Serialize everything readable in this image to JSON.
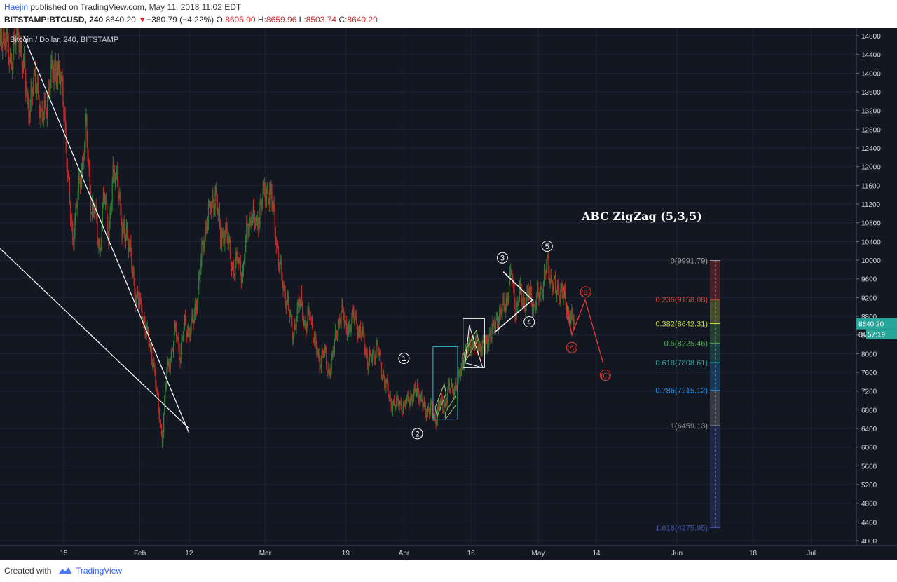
{
  "header": {
    "author": "Haejin",
    "published_text": "published on TradingView.com, May 11, 2018 11:02 EDT",
    "symbol": "BITSTAMP:BTCUSD, 240",
    "change_text": "−380.79 (−4.22%)",
    "ohlc": [
      {
        "label": "O:",
        "value": "8605.00"
      },
      {
        "label": "H:",
        "value": "8659.96"
      },
      {
        "label": "L:",
        "value": "8503.74"
      },
      {
        "label": "C:",
        "value": "8640.20"
      }
    ]
  },
  "footer": {
    "created_with": "Created with",
    "brand": "TradingView"
  },
  "chart_data": {
    "type": "candlestick",
    "series_title": "Bitcoin / Dollar, 240, BITSTAMP",
    "annotation_title": "ABC ZigZag (5,3,5)",
    "ylim": [
      4000,
      14800
    ],
    "y_ticks": [
      4000,
      4400,
      4800,
      5200,
      5600,
      6000,
      6400,
      6800,
      7200,
      7600,
      8000,
      8400,
      8800,
      9200,
      9600,
      10000,
      10400,
      10800,
      11200,
      11600,
      12000,
      12400,
      12800,
      13200,
      13600,
      14000,
      14400,
      14800
    ],
    "x_ticks": [
      {
        "label": "15",
        "day": 15
      },
      {
        "label": "Feb",
        "day": 32
      },
      {
        "label": "12",
        "day": 43
      },
      {
        "label": "Mar",
        "day": 60
      },
      {
        "label": "19",
        "day": 78
      },
      {
        "label": "Apr",
        "day": 91
      },
      {
        "label": "16",
        "day": 106
      },
      {
        "label": "May",
        "day": 121
      },
      {
        "label": "14",
        "day": 134
      },
      {
        "label": "Jun",
        "day": 152
      },
      {
        "label": "18",
        "day": 169
      },
      {
        "label": "Jul",
        "day": 182
      }
    ],
    "price_path": [
      [
        0,
        13500
      ],
      [
        1,
        15000
      ],
      [
        3,
        14300
      ],
      [
        5,
        14900
      ],
      [
        7,
        13300
      ],
      [
        9,
        13900
      ],
      [
        10,
        12900
      ],
      [
        12,
        13800
      ],
      [
        13,
        14200
      ],
      [
        15,
        13500
      ],
      [
        16,
        11500
      ],
      [
        17,
        10500
      ],
      [
        18,
        11200
      ],
      [
        19,
        12000
      ],
      [
        20,
        12800
      ],
      [
        21,
        11300
      ],
      [
        22,
        11000
      ],
      [
        23,
        10200
      ],
      [
        24,
        11400
      ],
      [
        25,
        10600
      ],
      [
        26,
        11700
      ],
      [
        27,
        11900
      ],
      [
        28,
        10500
      ],
      [
        29,
        10700
      ],
      [
        30,
        10000
      ],
      [
        31,
        9300
      ],
      [
        32,
        9000
      ],
      [
        33,
        8700
      ],
      [
        34,
        8200
      ],
      [
        35,
        7900
      ],
      [
        36,
        6900
      ],
      [
        37,
        6200
      ],
      [
        38,
        7600
      ],
      [
        39,
        8000
      ],
      [
        40,
        8500
      ],
      [
        41,
        8000
      ],
      [
        42,
        8600
      ],
      [
        43,
        8500
      ],
      [
        44,
        8700
      ],
      [
        45,
        9400
      ],
      [
        46,
        10200
      ],
      [
        47,
        10900
      ],
      [
        48,
        11100
      ],
      [
        49,
        11500
      ],
      [
        50,
        10400
      ],
      [
        51,
        10700
      ],
      [
        52,
        10200
      ],
      [
        53,
        9800
      ],
      [
        54,
        10000
      ],
      [
        55,
        9700
      ],
      [
        56,
        10700
      ],
      [
        57,
        11000
      ],
      [
        58,
        10700
      ],
      [
        59,
        11200
      ],
      [
        60,
        11400
      ],
      [
        61,
        11500
      ],
      [
        62,
        10900
      ],
      [
        63,
        10000
      ],
      [
        64,
        9400
      ],
      [
        65,
        9100
      ],
      [
        66,
        8400
      ],
      [
        67,
        8800
      ],
      [
        68,
        9200
      ],
      [
        69,
        8500
      ],
      [
        70,
        8900
      ],
      [
        71,
        8300
      ],
      [
        72,
        7800
      ],
      [
        73,
        8100
      ],
      [
        74,
        7600
      ],
      [
        75,
        7900
      ],
      [
        76,
        8500
      ],
      [
        77,
        8900
      ],
      [
        78,
        8600
      ],
      [
        79,
        8500
      ],
      [
        80,
        8900
      ],
      [
        81,
        8400
      ],
      [
        82,
        8400
      ],
      [
        83,
        7700
      ],
      [
        84,
        8000
      ],
      [
        85,
        8100
      ],
      [
        86,
        7700
      ],
      [
        87,
        7300
      ],
      [
        88,
        7000
      ],
      [
        89,
        6900
      ],
      [
        90,
        7000
      ],
      [
        91,
        6800
      ],
      [
        92,
        7100
      ],
      [
        93,
        7000
      ],
      [
        94,
        7300
      ],
      [
        95,
        6900
      ],
      [
        96,
        6800
      ],
      [
        97,
        6800
      ],
      [
        98,
        6600
      ],
      [
        99,
        6900
      ],
      [
        100,
        6900
      ],
      [
        101,
        7200
      ],
      [
        102,
        7300
      ],
      [
        103,
        7300
      ],
      [
        104,
        7900
      ],
      [
        105,
        8000
      ],
      [
        106,
        8300
      ],
      [
        107,
        8100
      ],
      [
        108,
        8200
      ],
      [
        109,
        8100
      ],
      [
        110,
        8400
      ],
      [
        111,
        8500
      ],
      [
        112,
        8800
      ],
      [
        113,
        8900
      ],
      [
        114,
        9200
      ],
      [
        115,
        9700
      ],
      [
        116,
        8900
      ],
      [
        117,
        9300
      ],
      [
        118,
        9100
      ],
      [
        119,
        9300
      ],
      [
        120,
        9000
      ],
      [
        121,
        9200
      ],
      [
        122,
        9500
      ],
      [
        123,
        9900
      ],
      [
        124,
        9600
      ],
      [
        125,
        9300
      ],
      [
        126,
        9400
      ],
      [
        127,
        9100
      ],
      [
        128,
        8800
      ],
      [
        129,
        8640
      ]
    ],
    "wave_labels": [
      {
        "label": "1",
        "day": 91,
        "price": 7900
      },
      {
        "label": "2",
        "day": 94,
        "price": 6290
      },
      {
        "label": "3",
        "day": 113,
        "price": 10050
      },
      {
        "label": "4",
        "day": 119,
        "price": 8680
      },
      {
        "label": "5",
        "day": 123,
        "price": 10300
      }
    ],
    "projection_path": [
      {
        "day": 126.5,
        "price": 9500
      },
      {
        "day": 128.5,
        "price": 8400
      },
      {
        "day": 131.5,
        "price": 9150
      },
      {
        "day": 135.5,
        "price": 7800
      }
    ],
    "projection_labels": [
      {
        "label": "(A)",
        "day": 128.5,
        "price": 8130
      },
      {
        "label": "(B)",
        "day": 131.6,
        "price": 9320
      },
      {
        "label": "(C)",
        "day": 136,
        "price": 7540
      }
    ],
    "fib_levels": [
      {
        "ratio": "0",
        "price": 9991.79,
        "color": "#9e9e9e"
      },
      {
        "ratio": "0.236",
        "price": 9158.08,
        "color": "#e53935"
      },
      {
        "ratio": "0.382",
        "price": 8642.31,
        "color": "#cddc39"
      },
      {
        "ratio": "0.5",
        "price": 8225.46,
        "color": "#4caf50"
      },
      {
        "ratio": "0.618",
        "price": 7808.61,
        "color": "#26a69a"
      },
      {
        "ratio": "0.786",
        "price": 7215.12,
        "color": "#2196f3"
      },
      {
        "ratio": "1",
        "price": 6459.13,
        "color": "#9e9e9e"
      },
      {
        "ratio": "1.618",
        "price": 4275.95,
        "color": "#3f51b5"
      }
    ],
    "last_price": {
      "value": "8640.20",
      "countdown": "57:19",
      "partial_label": "84"
    },
    "colors": {
      "background": "#131722",
      "up": "#2e7d32",
      "down": "#c62828",
      "annotation": "#ffffff",
      "projection": "#e53935",
      "box_cyan": "#26c6da"
    }
  }
}
